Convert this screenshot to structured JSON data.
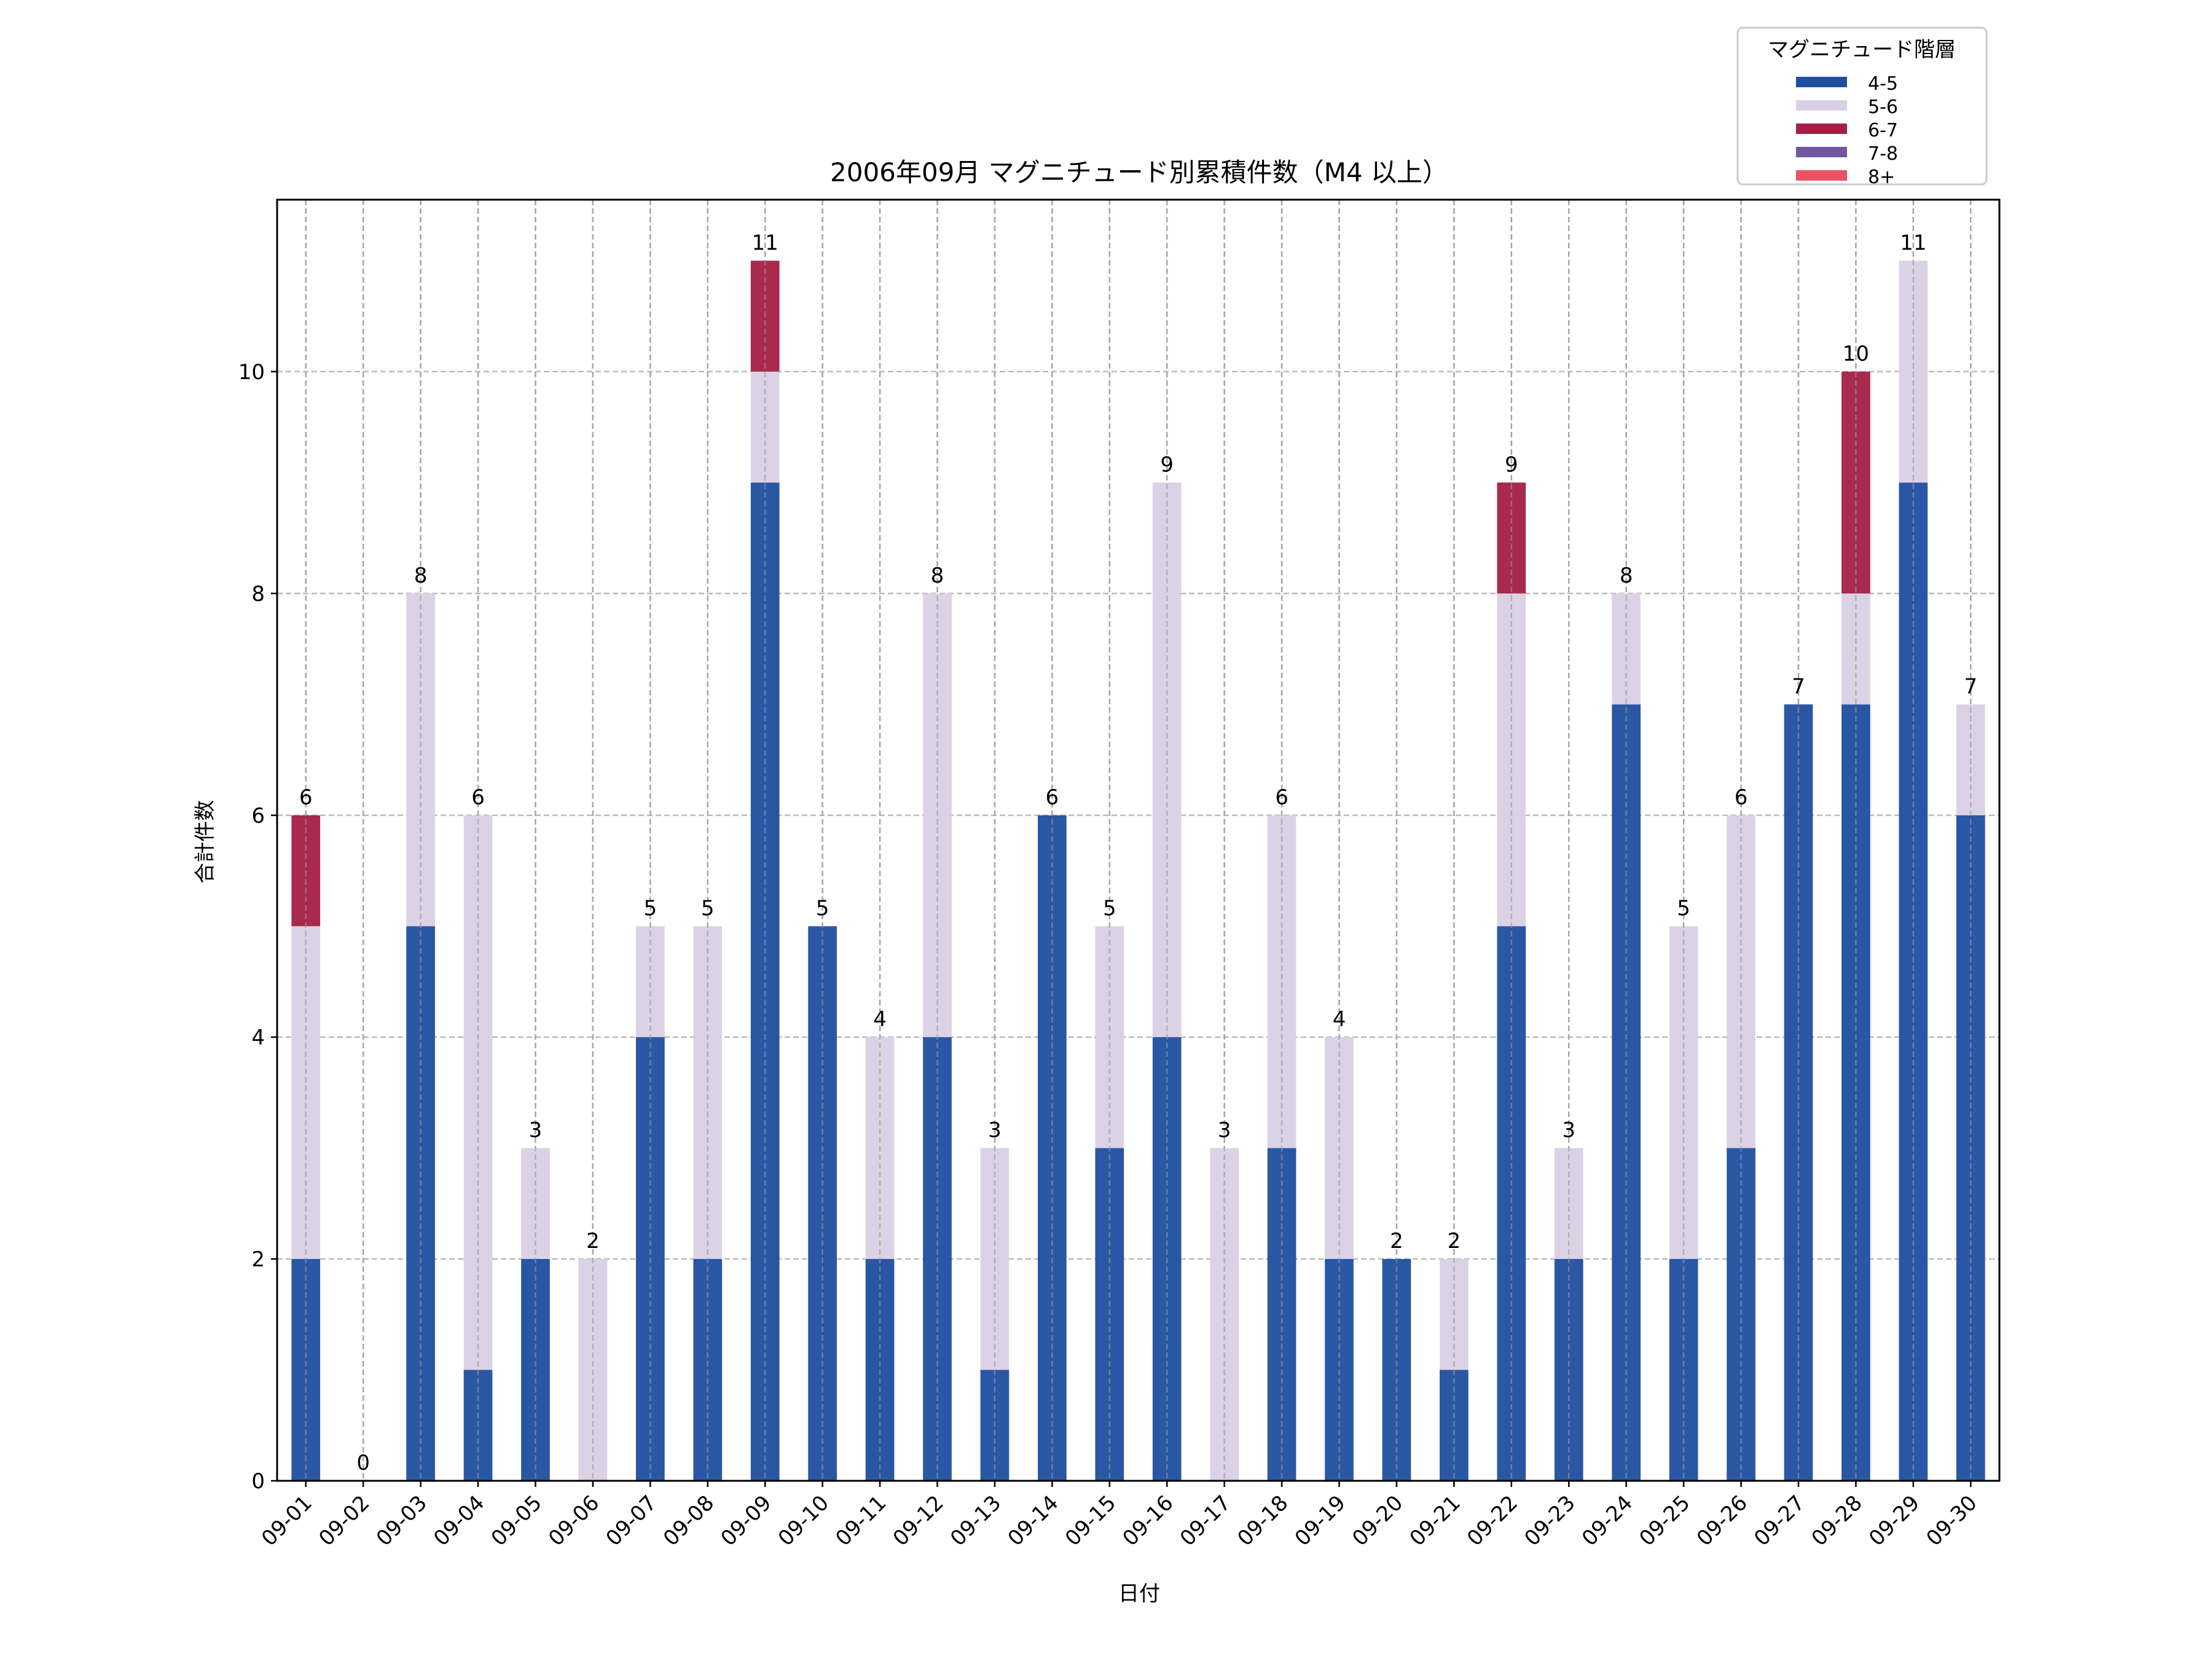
{
  "chart_data": {
    "type": "bar",
    "stacked": true,
    "title": "2006年09月 マグニチュード別累積件数（M4 以上）",
    "xlabel": "日付",
    "ylabel": "合計件数",
    "ylim": [
      0,
      11.55
    ],
    "yticks": [
      0,
      2,
      4,
      6,
      8,
      10
    ],
    "grid": true,
    "legend": {
      "title": "マグニチュード階層",
      "placement": "top-right"
    },
    "categories": [
      "09-01",
      "09-02",
      "09-03",
      "09-04",
      "09-05",
      "09-06",
      "09-07",
      "09-08",
      "09-09",
      "09-10",
      "09-11",
      "09-12",
      "09-13",
      "09-14",
      "09-15",
      "09-16",
      "09-17",
      "09-18",
      "09-19",
      "09-20",
      "09-21",
      "09-22",
      "09-23",
      "09-24",
      "09-25",
      "09-26",
      "09-27",
      "09-28",
      "09-29",
      "09-30"
    ],
    "series": [
      {
        "name": "4-5",
        "color": "#1f4e9f",
        "values": [
          2,
          0,
          5,
          1,
          2,
          0,
          4,
          2,
          9,
          5,
          2,
          4,
          1,
          6,
          3,
          4,
          0,
          3,
          2,
          2,
          1,
          5,
          2,
          7,
          2,
          3,
          7,
          7,
          9,
          6
        ]
      },
      {
        "name": "5-6",
        "color": "#dad0e5",
        "values": [
          3,
          0,
          3,
          5,
          1,
          2,
          1,
          3,
          1,
          0,
          2,
          4,
          2,
          0,
          2,
          5,
          3,
          3,
          2,
          0,
          1,
          3,
          1,
          1,
          3,
          3,
          0,
          1,
          2,
          1
        ]
      },
      {
        "name": "6-7",
        "color": "#a31f43",
        "values": [
          1,
          0,
          0,
          0,
          0,
          0,
          0,
          0,
          1,
          0,
          0,
          0,
          0,
          0,
          0,
          0,
          0,
          0,
          0,
          0,
          0,
          1,
          0,
          0,
          0,
          0,
          0,
          2,
          0,
          0
        ]
      },
      {
        "name": "7-8",
        "color": "#6f57a0",
        "values": [
          0,
          0,
          0,
          0,
          0,
          0,
          0,
          0,
          0,
          0,
          0,
          0,
          0,
          0,
          0,
          0,
          0,
          0,
          0,
          0,
          0,
          0,
          0,
          0,
          0,
          0,
          0,
          0,
          0,
          0
        ]
      },
      {
        "name": "8+",
        "color": "#e85466",
        "values": [
          0,
          0,
          0,
          0,
          0,
          0,
          0,
          0,
          0,
          0,
          0,
          0,
          0,
          0,
          0,
          0,
          0,
          0,
          0,
          0,
          0,
          0,
          0,
          0,
          0,
          0,
          0,
          0,
          0,
          0
        ]
      }
    ],
    "totals": [
      6,
      0,
      8,
      6,
      3,
      2,
      5,
      5,
      11,
      5,
      4,
      8,
      3,
      6,
      5,
      9,
      3,
      6,
      4,
      2,
      2,
      9,
      3,
      8,
      5,
      6,
      7,
      10,
      11,
      7
    ]
  }
}
